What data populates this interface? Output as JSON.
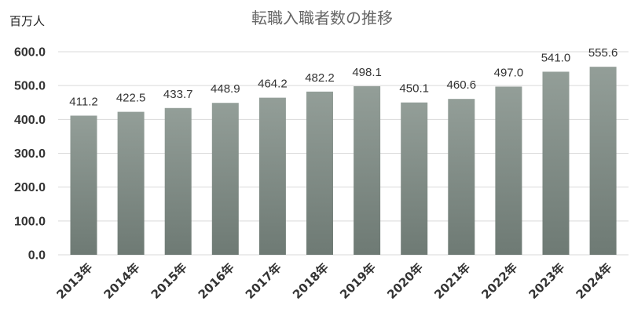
{
  "chart_data": {
    "type": "bar",
    "title": "転職入職者数の推移",
    "unit": "百万人",
    "categories": [
      "2013年",
      "2014年",
      "2015年",
      "2016年",
      "2017年",
      "2018年",
      "2019年",
      "2020年",
      "2021年",
      "2022年",
      "2023年",
      "2024年"
    ],
    "values": [
      411.2,
      422.5,
      433.7,
      448.9,
      464.2,
      482.2,
      498.1,
      450.1,
      460.6,
      497.0,
      541.0,
      555.6
    ],
    "data_labels": [
      "411.2",
      "422.5",
      "433.7",
      "448.9",
      "464.2",
      "482.2",
      "498.1",
      "450.1",
      "460.6",
      "497.0",
      "541.0",
      "555.6"
    ],
    "yticks": [
      "0.0",
      "100.0",
      "200.0",
      "300.0",
      "400.0",
      "500.0",
      "600.0"
    ],
    "ylim": [
      0,
      600
    ],
    "grid": true,
    "legend": "none",
    "bar_color_top": "#939e98",
    "bar_color_bottom": "#6e7a74"
  }
}
